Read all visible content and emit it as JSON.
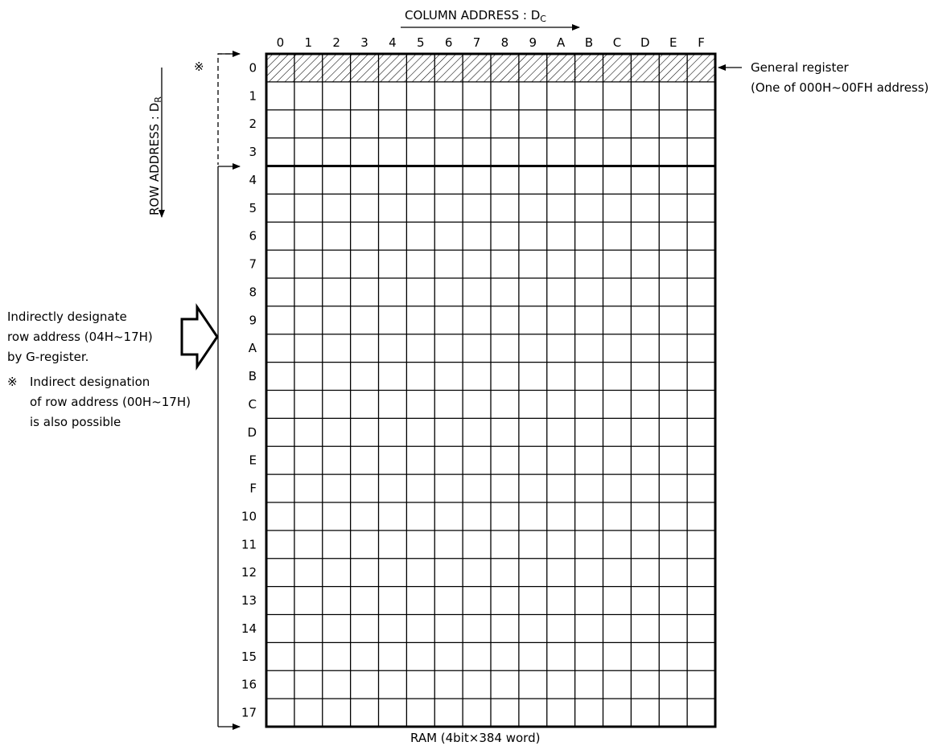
{
  "column_axis": {
    "label": "COLUMN ADDRESS : D",
    "subscript": "C",
    "values": [
      "0",
      "1",
      "2",
      "3",
      "4",
      "5",
      "6",
      "7",
      "8",
      "9",
      "A",
      "B",
      "C",
      "D",
      "E",
      "F"
    ]
  },
  "row_axis": {
    "label": "ROW ADDRESS : D",
    "subscript": "R",
    "values": [
      "0",
      "1",
      "2",
      "3",
      "4",
      "5",
      "6",
      "7",
      "8",
      "9",
      "A",
      "B",
      "C",
      "D",
      "E",
      "F",
      "10",
      "11",
      "12",
      "13",
      "14",
      "15",
      "16",
      "17"
    ]
  },
  "marker": "※",
  "general_register": {
    "title": "General register",
    "detail": "(One of 000H~00FH address)"
  },
  "indirect_note": {
    "line1": "Indirectly designate",
    "line2": "row address (04H~17H)",
    "line3": "by G-register.",
    "line4_marker": "※",
    "line4": "Indirect designation",
    "line5": "of row address (00H~17H)",
    "line6": "is also possible"
  },
  "caption": "RAM (4bit×384 word)"
}
